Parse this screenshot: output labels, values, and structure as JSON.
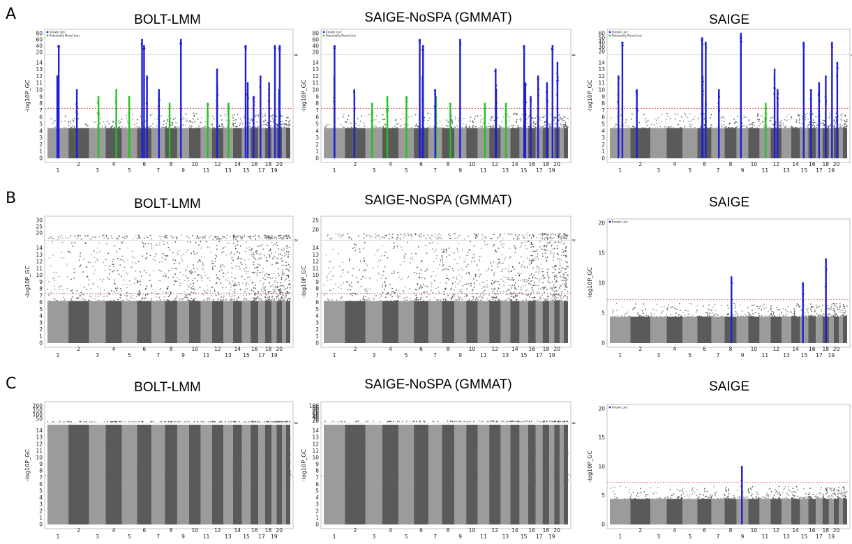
{
  "figure": {
    "row_labels": [
      "A",
      "B",
      "C"
    ],
    "panel_titles": [
      "BOLT-LMM",
      "SAIGE-NoSPA (GMMAT)",
      "SAIGE"
    ]
  },
  "colors": {
    "chrom_dark": "#5a5a5a",
    "chrom_light": "#9b9b9b",
    "known": "#1f1fd6",
    "novel": "#22c322",
    "threshold": "#e05050",
    "break_line": "#cccccc",
    "frame": "#999999"
  },
  "chart_data": [
    {
      "type": "scatter",
      "row": "A",
      "title": "BOLT-LMM",
      "ylabel": "-log10P_GC",
      "threshold": 7.3,
      "y_ticks_lower": [
        0,
        1,
        2,
        3,
        4,
        5,
        6,
        7,
        8,
        9,
        10,
        11,
        12,
        13,
        14
      ],
      "y_ticks_upper": [
        20,
        40,
        60,
        80
      ],
      "break_at": 15,
      "legend": [
        "Known Loci",
        "Potentially Novel Loci"
      ],
      "x_ticks_top": [
        "2",
        "4",
        "6",
        "8",
        "10",
        "12",
        "14",
        "16",
        "18",
        "20"
      ],
      "x_ticks_bottom": [
        "1",
        "3",
        "5",
        "7",
        "9",
        "11",
        "13",
        "15",
        "17",
        "19"
      ],
      "known_peaks": [
        {
          "chr": 1,
          "y": 40
        },
        {
          "chr": 1,
          "y": 12
        },
        {
          "chr": 2,
          "y": 10
        },
        {
          "chr": 6,
          "y": 40
        },
        {
          "chr": 6,
          "y": 12
        },
        {
          "chr": 6,
          "y": 60
        },
        {
          "chr": 7,
          "y": 10
        },
        {
          "chr": 9,
          "y": 60
        },
        {
          "chr": 12,
          "y": 10
        },
        {
          "chr": 12,
          "y": 13
        },
        {
          "chr": 15,
          "y": 40
        },
        {
          "chr": 15,
          "y": 11
        },
        {
          "chr": 16,
          "y": 9
        },
        {
          "chr": 17,
          "y": 12
        },
        {
          "chr": 18,
          "y": 11
        },
        {
          "chr": 19,
          "y": 40
        },
        {
          "chr": 20,
          "y": 40
        },
        {
          "chr": 20,
          "y": 10
        }
      ],
      "novel_peaks": [
        {
          "chr": 3,
          "y": 9
        },
        {
          "chr": 4,
          "y": 10
        },
        {
          "chr": 5,
          "y": 9
        },
        {
          "chr": 7,
          "y": 9
        },
        {
          "chr": 8,
          "y": 8
        },
        {
          "chr": 11,
          "y": 8
        },
        {
          "chr": 13,
          "y": 8
        }
      ],
      "inflated": false
    },
    {
      "type": "scatter",
      "row": "A",
      "title": "SAIGE-NoSPA (GMMAT)",
      "ylabel": "-log10P_GC",
      "threshold": 7.3,
      "y_ticks_lower": [
        0,
        1,
        2,
        3,
        4,
        5,
        6,
        7,
        8,
        9,
        10,
        11,
        12,
        13,
        14
      ],
      "y_ticks_upper": [
        20,
        40,
        60,
        80
      ],
      "break_at": 15,
      "legend": [
        "Known Loci",
        "Potentially Novel Loci"
      ],
      "x_ticks_top": [
        "2",
        "4",
        "6",
        "8",
        "10",
        "12",
        "14",
        "16",
        "18",
        "20"
      ],
      "x_ticks_bottom": [
        "1",
        "3",
        "5",
        "7",
        "9",
        "11",
        "13",
        "15",
        "17",
        "19"
      ],
      "known_peaks": [
        {
          "chr": 1,
          "y": 40
        },
        {
          "chr": 1,
          "y": 12
        },
        {
          "chr": 2,
          "y": 10
        },
        {
          "chr": 6,
          "y": 40
        },
        {
          "chr": 6,
          "y": 12
        },
        {
          "chr": 6,
          "y": 60
        },
        {
          "chr": 7,
          "y": 10
        },
        {
          "chr": 9,
          "y": 60
        },
        {
          "chr": 12,
          "y": 10
        },
        {
          "chr": 12,
          "y": 13
        },
        {
          "chr": 15,
          "y": 40
        },
        {
          "chr": 15,
          "y": 11
        },
        {
          "chr": 16,
          "y": 9
        },
        {
          "chr": 17,
          "y": 12
        },
        {
          "chr": 18,
          "y": 11
        },
        {
          "chr": 19,
          "y": 40
        },
        {
          "chr": 20,
          "y": 14
        }
      ],
      "novel_peaks": [
        {
          "chr": 3,
          "y": 8
        },
        {
          "chr": 4,
          "y": 9
        },
        {
          "chr": 5,
          "y": 9
        },
        {
          "chr": 7,
          "y": 9
        },
        {
          "chr": 8,
          "y": 8
        },
        {
          "chr": 11,
          "y": 8
        },
        {
          "chr": 13,
          "y": 8
        }
      ],
      "inflated": false
    },
    {
      "type": "scatter",
      "row": "A",
      "title": "SAIGE",
      "ylabel": "-log10P_GC",
      "threshold": 7.3,
      "y_ticks_lower": [
        0,
        1,
        2,
        3,
        4,
        5,
        6,
        7,
        8,
        9,
        10,
        11,
        12,
        13,
        14
      ],
      "y_ticks_upper": [
        20,
        30,
        40,
        50,
        60
      ],
      "break_at": 15,
      "legend": [
        "Known Loci",
        "Potentially Novel Loci"
      ],
      "x_ticks_top": [
        "2",
        "4",
        "6",
        "8",
        "10",
        "12",
        "14",
        "16",
        "18",
        "20"
      ],
      "x_ticks_bottom": [
        "1",
        "3",
        "5",
        "7",
        "9",
        "11",
        "13",
        "15",
        "17",
        "19"
      ],
      "known_peaks": [
        {
          "chr": 1,
          "y": 40
        },
        {
          "chr": 1,
          "y": 12
        },
        {
          "chr": 2,
          "y": 10
        },
        {
          "chr": 6,
          "y": 40
        },
        {
          "chr": 6,
          "y": 12
        },
        {
          "chr": 6,
          "y": 50
        },
        {
          "chr": 7,
          "y": 10
        },
        {
          "chr": 9,
          "y": 60
        },
        {
          "chr": 12,
          "y": 10
        },
        {
          "chr": 12,
          "y": 13
        },
        {
          "chr": 15,
          "y": 40
        },
        {
          "chr": 16,
          "y": 10
        },
        {
          "chr": 17,
          "y": 11
        },
        {
          "chr": 18,
          "y": 12
        },
        {
          "chr": 19,
          "y": 40
        },
        {
          "chr": 20,
          "y": 14
        }
      ],
      "novel_peaks": [
        {
          "chr": 6,
          "y": 8
        },
        {
          "chr": 11,
          "y": 8
        }
      ],
      "inflated": false
    },
    {
      "type": "scatter",
      "row": "B",
      "title": "BOLT-LMM",
      "ylabel": "-log10P_GC",
      "threshold": 7.3,
      "y_ticks_lower": [
        0,
        1,
        2,
        3,
        4,
        5,
        6,
        7,
        8,
        9,
        10,
        11,
        12,
        13,
        14
      ],
      "y_ticks_upper": [
        15,
        20,
        25,
        30
      ],
      "break_at": 15,
      "legend": [],
      "x_ticks_top": [
        "2",
        "4",
        "6",
        "8",
        "10",
        "12",
        "14",
        "16",
        "18",
        "20"
      ],
      "x_ticks_bottom": [
        "1",
        "3",
        "5",
        "7",
        "9",
        "11",
        "13",
        "15",
        "17",
        "19"
      ],
      "known_peaks": [],
      "novel_peaks": [],
      "inflated": true
    },
    {
      "type": "scatter",
      "row": "B",
      "title": "SAIGE-NoSPA (GMMAT)",
      "ylabel": "-log10P_GC",
      "threshold": 7.3,
      "y_ticks_lower": [
        0,
        1,
        2,
        3,
        4,
        5,
        6,
        7,
        8,
        9,
        10,
        11,
        12,
        13,
        14
      ],
      "y_ticks_upper": [
        15,
        20,
        25
      ],
      "break_at": 15,
      "legend": [],
      "x_ticks_top": [
        "2",
        "4",
        "6",
        "8",
        "10",
        "12",
        "14",
        "16",
        "18",
        "20"
      ],
      "x_ticks_bottom": [
        "1",
        "3",
        "5",
        "7",
        "9",
        "11",
        "13",
        "15",
        "17",
        "19"
      ],
      "known_peaks": [],
      "novel_peaks": [],
      "inflated": true
    },
    {
      "type": "scatter",
      "row": "B",
      "title": "SAIGE",
      "ylabel": "-log10P_GC",
      "threshold": 7.3,
      "y_ticks_lower": [
        0,
        5,
        10,
        15,
        20
      ],
      "y_ticks_upper": [],
      "break_at": null,
      "ymax": 20,
      "legend": [
        "Known Loci"
      ],
      "x_ticks_top": [
        "2",
        "4",
        "6",
        "8",
        "10",
        "12",
        "14",
        "16",
        "18",
        "20"
      ],
      "x_ticks_bottom": [
        "1",
        "3",
        "5",
        "7",
        "9",
        "11",
        "13",
        "15",
        "17",
        "19"
      ],
      "known_peaks": [
        {
          "chr": 8,
          "y": 11
        },
        {
          "chr": 15,
          "y": 10
        },
        {
          "chr": 18,
          "y": 14
        }
      ],
      "novel_peaks": [],
      "inflated": false
    },
    {
      "type": "scatter",
      "row": "C",
      "title": "BOLT-LMM",
      "ylabel": "-log10P_GC",
      "threshold": 7.3,
      "y_ticks_lower": [
        0,
        1,
        2,
        3,
        4,
        5,
        6,
        7,
        8,
        9,
        10,
        11,
        12,
        13,
        14
      ],
      "y_ticks_upper": [
        50,
        100,
        150,
        200
      ],
      "break_at": 15,
      "legend": [],
      "x_ticks_top": [
        "2",
        "4",
        "6",
        "8",
        "10",
        "12",
        "14",
        "16",
        "18",
        "20"
      ],
      "x_ticks_bottom": [
        "1",
        "3",
        "5",
        "7",
        "9",
        "11",
        "13",
        "15",
        "17",
        "19"
      ],
      "known_peaks": [],
      "novel_peaks": [],
      "inflated": true,
      "saturated": true
    },
    {
      "type": "scatter",
      "row": "C",
      "title": "SAIGE-NoSPA (GMMAT)",
      "ylabel": "-log10P_GC",
      "threshold": 7.3,
      "y_ticks_lower": [
        0,
        1,
        2,
        3,
        4,
        5,
        6,
        7,
        8,
        9,
        10,
        11,
        12,
        13,
        14
      ],
      "y_ticks_upper": [
        20,
        30,
        40,
        50,
        60,
        70,
        80,
        90,
        100
      ],
      "break_at": 15,
      "legend": [],
      "x_ticks_top": [
        "2",
        "4",
        "6",
        "8",
        "10",
        "12",
        "14",
        "16",
        "18",
        "20"
      ],
      "x_ticks_bottom": [
        "1",
        "3",
        "5",
        "7",
        "9",
        "11",
        "13",
        "15",
        "17",
        "19"
      ],
      "known_peaks": [],
      "novel_peaks": [],
      "inflated": true,
      "saturated": true
    },
    {
      "type": "scatter",
      "row": "C",
      "title": "SAIGE",
      "ylabel": "-log10P_GC",
      "threshold": 7.3,
      "y_ticks_lower": [
        0,
        5,
        10,
        15,
        20
      ],
      "y_ticks_upper": [],
      "break_at": null,
      "ymax": 20,
      "legend": [
        "Known Loci"
      ],
      "x_ticks_top": [
        "2",
        "4",
        "6",
        "8",
        "10",
        "12",
        "14",
        "16",
        "18",
        "20"
      ],
      "x_ticks_bottom": [
        "1",
        "3",
        "5",
        "7",
        "9",
        "11",
        "13",
        "15",
        "17",
        "19"
      ],
      "known_peaks": [
        {
          "chr": 9,
          "y": 10
        }
      ],
      "novel_peaks": [],
      "inflated": false
    }
  ]
}
